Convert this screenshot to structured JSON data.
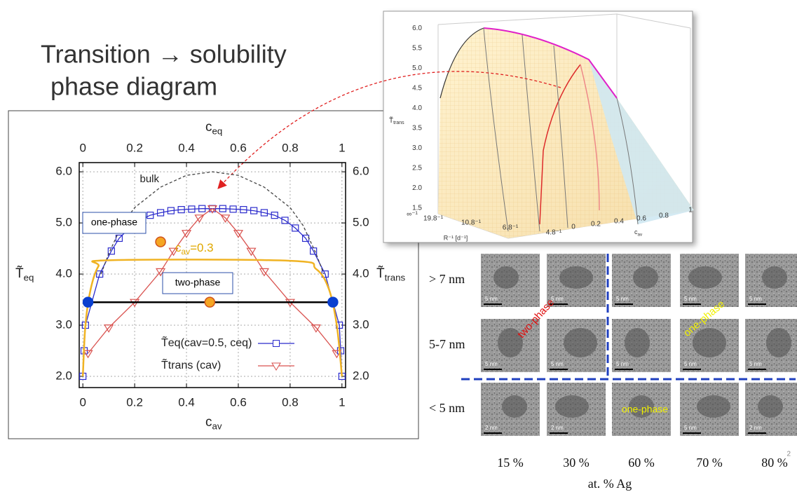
{
  "title": [
    "Transition → solubility",
    "phase diagram"
  ],
  "page_number": "2",
  "chart_data": {
    "type": "line",
    "xlabel": {
      "base": "c",
      "sub": "av"
    },
    "x2label": {
      "base": "c",
      "sub": "eq"
    },
    "ylabel": {
      "base": "T̃",
      "sub": "eq"
    },
    "y2label": {
      "base": "T̃",
      "sub": "trans"
    },
    "xlim": [
      -0.014,
      1.014
    ],
    "ylim": [
      1.78,
      6.18
    ],
    "xticks": [
      0,
      0.2,
      0.4,
      0.6,
      0.8,
      1
    ],
    "yticks": [
      {
        "value": 2,
        "label": "2.0"
      },
      {
        "value": 3,
        "label": "3.0"
      },
      {
        "value": 4,
        "label": "4.0"
      },
      {
        "value": 5,
        "label": "5.0"
      },
      {
        "value": 6,
        "label": "6.0"
      }
    ],
    "grid": true,
    "legend": "lower right",
    "series": [
      {
        "name": "T̃eq(cav=0.5, ceq)",
        "color": "#2b2bcc",
        "marker": "square",
        "line": true,
        "x": [
          0,
          0.005,
          0.01,
          0.065,
          0.11,
          0.14,
          0.18,
          0.22,
          0.26,
          0.3,
          0.34,
          0.38,
          0.42,
          0.46,
          0.5,
          0.54,
          0.58,
          0.62,
          0.66,
          0.7,
          0.74,
          0.78,
          0.82,
          0.86,
          0.89,
          0.935,
          0.99,
          0.995,
          1
        ],
        "values": [
          2.0,
          2.5,
          3.0,
          4.0,
          4.45,
          4.7,
          4.9,
          5.05,
          5.15,
          5.2,
          5.24,
          5.26,
          5.27,
          5.28,
          5.28,
          5.28,
          5.27,
          5.26,
          5.24,
          5.2,
          5.15,
          5.05,
          4.9,
          4.7,
          4.45,
          4.0,
          3.0,
          2.5,
          2.0
        ]
      },
      {
        "name": "T̃trans (cav)",
        "color": "#d9524f",
        "marker": "triangle",
        "line": true,
        "x": [
          0.02,
          0.1,
          0.2,
          0.3,
          0.35,
          0.4,
          0.45,
          0.5,
          0.55,
          0.6,
          0.65,
          0.7,
          0.8,
          0.9,
          0.98
        ],
        "values": [
          2.45,
          2.95,
          3.45,
          4.05,
          4.45,
          4.8,
          5.1,
          5.28,
          5.1,
          4.8,
          4.45,
          4.05,
          3.45,
          2.95,
          2.45
        ]
      },
      {
        "color": "#444444",
        "style": "dashed",
        "marker": "none",
        "line": true,
        "x": [
          0.07,
          0.1,
          0.15,
          0.2,
          0.3,
          0.4,
          0.5,
          0.6,
          0.7,
          0.8,
          0.85,
          0.9,
          0.93
        ],
        "values": [
          4.0,
          4.4,
          4.95,
          5.3,
          5.7,
          5.93,
          6.0,
          5.93,
          5.7,
          5.3,
          4.95,
          4.4,
          4.0
        ]
      },
      {
        "color": "#f0b323",
        "marker": "none",
        "line": true,
        "x": [
          0,
          0.01,
          0.03,
          0.06,
          0.1,
          0.8,
          0.9,
          0.95,
          0.98,
          1
        ],
        "values": [
          2.0,
          3.0,
          3.7,
          4.15,
          4.27,
          4.26,
          4.1,
          3.7,
          3.0,
          2.0
        ]
      },
      {
        "color": "#000000",
        "marker": "dot",
        "marker_color": "#0a3fcf",
        "line": true,
        "x": [
          0.02,
          0.965
        ],
        "values": [
          3.45,
          3.45
        ]
      },
      {
        "color": "#f0b323",
        "marker": "dot",
        "marker_color": "#f5a623",
        "line": false,
        "x": [
          0.3,
          0.49
        ],
        "values": [
          4.63,
          3.45
        ]
      }
    ],
    "annotations": {
      "bulk": "bulk",
      "one_phase": "one-phase",
      "two_phase": "two-phase",
      "cav": {
        "base": "c",
        "sub": "av",
        "rest": "=0.3"
      }
    }
  },
  "inset": {
    "ylabel": {
      "base": "T̃",
      "sub": "trans"
    },
    "zticks": [
      "1.5",
      "2.0",
      "2.5",
      "3.0",
      "3.5",
      "4.0",
      "4.5",
      "5.0",
      "5.5",
      "6.0"
    ],
    "rticks": [
      "∞⁻¹",
      "19.8⁻¹",
      "10.8⁻¹",
      "6.8⁻¹",
      "4.8⁻¹"
    ],
    "rlabel": "R⁻¹ [d⁻¹]",
    "cticks": [
      "0",
      "0.2",
      "0.4",
      "0.6",
      "0.8",
      "1"
    ],
    "clabel": {
      "base": "c",
      "sub": "av"
    }
  },
  "micrographs": {
    "rows": [
      "> 7 nm",
      "5-7 nm",
      "< 5 nm"
    ],
    "columns": [
      "15 %",
      "30 %",
      "60 %",
      "70 %",
      "80 %"
    ],
    "xlabel": "at. % Ag",
    "scale_bars": [
      [
        "5 nm",
        "5 nm",
        "5 nm",
        "5 nm",
        "5 nm"
      ],
      [
        "5 nm",
        "5 nm",
        "5 nm",
        "5 nm",
        "5 nm"
      ],
      [
        "2 nm",
        "2 nm",
        null,
        "5 nm",
        "2 nm"
      ]
    ],
    "labels": {
      "two_phase": "two-phase",
      "one_phase_top": "one-phase",
      "one_phase_bottom": "one-phase"
    }
  }
}
